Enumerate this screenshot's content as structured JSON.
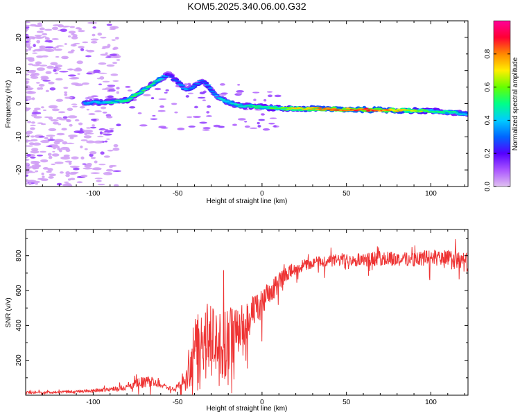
{
  "title": "KOM5.2025.340.06.00.G32",
  "colors": {
    "snr_line": "#ee3333",
    "axis": "#000000",
    "background": "#ffffff"
  },
  "chart_data": [
    {
      "type": "heatmap",
      "name": "spectrogram",
      "xlabel": "Height of straight line (km)",
      "ylabel": "Frequency (Hz)",
      "xlim": [
        -140,
        122
      ],
      "ylim": [
        -25,
        25
      ],
      "xticks": [
        -100,
        -50,
        0,
        50,
        100
      ],
      "yticks": [
        -20,
        -10,
        0,
        10,
        20
      ],
      "colorbar": {
        "label": "Normalized spectral amplitude",
        "range": [
          0,
          1
        ],
        "ticks": [
          0.0,
          0.2,
          0.4,
          0.6,
          0.8
        ],
        "colormap": [
          "#e0c0f0",
          "#aa55ff",
          "#5500ff",
          "#0066ff",
          "#00ccff",
          "#00ff88",
          "#66ff00",
          "#ffee00",
          "#ff8800",
          "#ff0033",
          "#ff0099"
        ]
      },
      "main_trace": [
        {
          "x": -105,
          "freq": 0.2,
          "amp": 0.35
        },
        {
          "x": -90,
          "freq": 0.5,
          "amp": 0.45
        },
        {
          "x": -80,
          "freq": 1.0,
          "amp": 0.5
        },
        {
          "x": -70,
          "freq": 4.0,
          "amp": 0.5
        },
        {
          "x": -60,
          "freq": 7.5,
          "amp": 0.45
        },
        {
          "x": -55,
          "freq": 9.0,
          "amp": 0.25
        },
        {
          "x": -45,
          "freq": 4.0,
          "amp": 0.35
        },
        {
          "x": -35,
          "freq": 7.0,
          "amp": 0.3
        },
        {
          "x": -25,
          "freq": 1.5,
          "amp": 0.4
        },
        {
          "x": -15,
          "freq": -0.5,
          "amp": 0.45
        },
        {
          "x": 0,
          "freq": -1.0,
          "amp": 0.5
        },
        {
          "x": 10,
          "freq": -1.5,
          "amp": 0.55
        },
        {
          "x": 20,
          "freq": -1.5,
          "amp": 0.7
        },
        {
          "x": 40,
          "freq": -1.6,
          "amp": 0.8
        },
        {
          "x": 60,
          "freq": -1.8,
          "amp": 0.85
        },
        {
          "x": 80,
          "freq": -2.0,
          "amp": 0.75
        },
        {
          "x": 100,
          "freq": -2.2,
          "amp": 0.55
        },
        {
          "x": 122,
          "freq": -3.0,
          "amp": 0.4
        }
      ]
    },
    {
      "type": "line",
      "name": "snr",
      "xlabel": "Height of straight line (km)",
      "ylabel": "SNR (v/v)",
      "xlim": [
        -140,
        122
      ],
      "ylim": [
        0,
        950
      ],
      "xticks": [
        -100,
        -50,
        0,
        50,
        100
      ],
      "yticks": [
        200,
        400,
        600,
        800
      ],
      "envelope": {
        "x": [
          -140,
          -110,
          -95,
          -80,
          -72,
          -65,
          -60,
          -52,
          -46,
          -42,
          -38,
          -34,
          -30,
          -25,
          -20,
          -15,
          -10,
          -5,
          0,
          5,
          10,
          15,
          20,
          30,
          40,
          50,
          60,
          70,
          80,
          90,
          100,
          110,
          122
        ],
        "base": [
          15,
          20,
          30,
          45,
          70,
          80,
          60,
          30,
          80,
          200,
          300,
          320,
          300,
          280,
          300,
          350,
          420,
          470,
          520,
          580,
          650,
          700,
          730,
          760,
          770,
          780,
          780,
          785,
          780,
          780,
          790,
          780,
          760
        ],
        "spread": [
          10,
          10,
          15,
          25,
          50,
          40,
          25,
          15,
          60,
          250,
          300,
          320,
          300,
          300,
          280,
          220,
          180,
          150,
          120,
          100,
          80,
          60,
          50,
          50,
          50,
          55,
          60,
          60,
          60,
          60,
          70,
          80,
          80
        ]
      }
    }
  ]
}
